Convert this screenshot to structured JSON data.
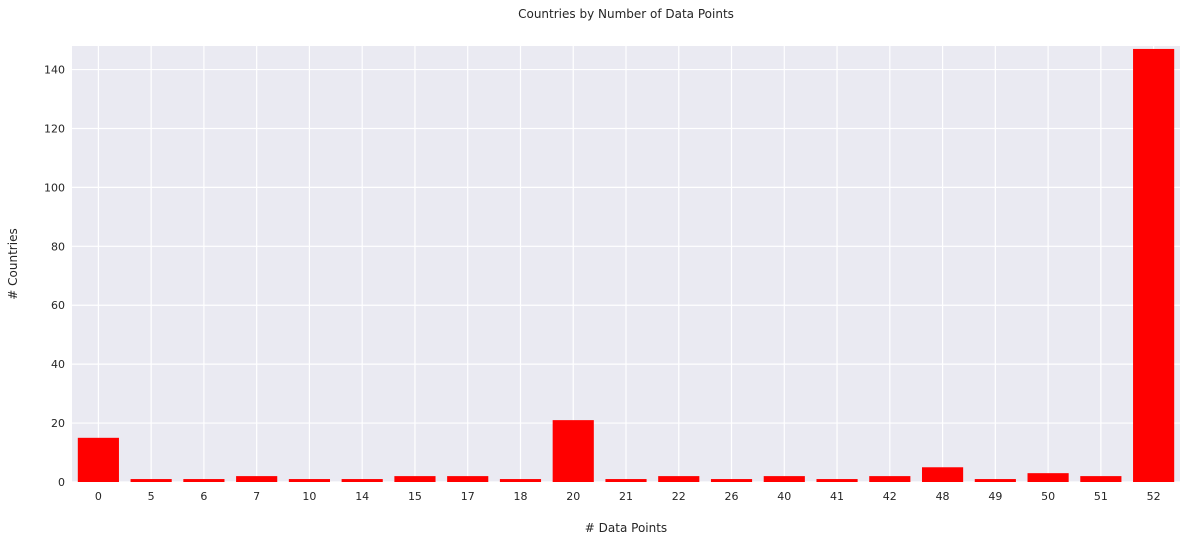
{
  "chart_data": {
    "type": "bar",
    "title": "Countries by Number of Data Points",
    "xlabel": "# Data Points",
    "ylabel": "# Countries",
    "categories": [
      "0",
      "5",
      "6",
      "7",
      "10",
      "14",
      "15",
      "17",
      "18",
      "20",
      "21",
      "22",
      "26",
      "40",
      "41",
      "42",
      "48",
      "49",
      "50",
      "51",
      "52"
    ],
    "values": [
      15,
      1,
      1,
      2,
      1,
      1,
      2,
      2,
      1,
      21,
      1,
      2,
      1,
      2,
      1,
      2,
      5,
      1,
      3,
      2,
      147
    ],
    "ylim": [
      0,
      148
    ],
    "yticks": [
      0,
      20,
      40,
      60,
      80,
      100,
      120,
      140
    ],
    "grid": true,
    "bar_color": "#ff0000",
    "background_color": "#eaeaf2",
    "grid_color": "#ffffff"
  }
}
